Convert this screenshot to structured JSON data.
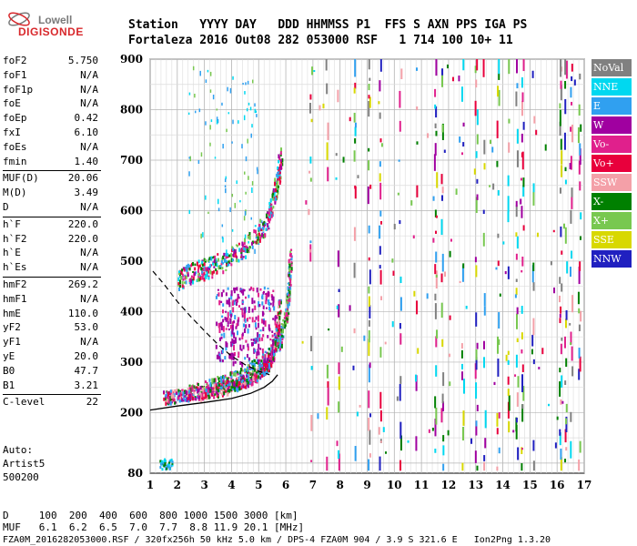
{
  "logo": {
    "line1": "Lowell",
    "line2": "DIGISONDE"
  },
  "header": {
    "row1": "Station   YYYY DAY   DDD HHMMSS P1  FFS S AXN PPS IGA PS",
    "row2": "Fortaleza 2016 Out08 282 053000 RSF   1 714 100 10+ 11"
  },
  "params": [
    {
      "name": "foF2",
      "value": "5.750"
    },
    {
      "name": "foF1",
      "value": "N/A"
    },
    {
      "name": "foF1p",
      "value": "N/A"
    },
    {
      "name": "foE",
      "value": "N/A"
    },
    {
      "name": "foEp",
      "value": "0.42"
    },
    {
      "name": "fxI",
      "value": "6.10"
    },
    {
      "name": "foEs",
      "value": "N/A"
    },
    {
      "name": "fmin",
      "value": "1.40"
    },
    {
      "name": "MUF(D)",
      "value": "20.06"
    },
    {
      "name": "M(D)",
      "value": "3.49"
    },
    {
      "name": "D",
      "value": "N/A"
    },
    {
      "name": "h`F",
      "value": "220.0"
    },
    {
      "name": "h`F2",
      "value": "220.0"
    },
    {
      "name": "h`E",
      "value": "N/A"
    },
    {
      "name": "h`Es",
      "value": "N/A"
    },
    {
      "name": "hmF2",
      "value": "269.2"
    },
    {
      "name": "hmF1",
      "value": "N/A"
    },
    {
      "name": "hmE",
      "value": "110.0"
    },
    {
      "name": "yF2",
      "value": "53.0"
    },
    {
      "name": "yF1",
      "value": "N/A"
    },
    {
      "name": "yE",
      "value": "20.0"
    },
    {
      "name": "B0",
      "value": "47.7"
    },
    {
      "name": "B1",
      "value": "3.21"
    },
    {
      "name": "C-level",
      "value": "22"
    }
  ],
  "auto": {
    "label": "Auto:",
    "artist": "Artist5",
    "code": "500200"
  },
  "footer": {
    "d_row": "D     100  200  400  600  800 1000 1500 3000 [km]",
    "muf_row": "MUF   6.1  6.2  6.5  7.0  7.7  8.8 11.9 20.1 [MHz]",
    "file_row": "FZA0M_2016282053000.RSF / 320fx256h 50 kHz 5.0 km / DPS-4 FZA0M 904 / 3.9 S 321.6 E   Ion2Png 1.3.20"
  },
  "chart_data": {
    "type": "scatter",
    "title": "",
    "xlabel": "",
    "ylabel": "",
    "xlim": [
      1,
      17
    ],
    "ylim": [
      80,
      900
    ],
    "x_ticks": [
      1,
      2,
      3,
      4,
      5,
      6,
      7,
      8,
      9,
      10,
      11,
      12,
      13,
      14,
      15,
      16,
      17
    ],
    "y_ticks": [
      80,
      200,
      300,
      400,
      500,
      600,
      700,
      800,
      900
    ],
    "grid": true,
    "legend_position": "right",
    "legend": [
      {
        "name": "NoVal",
        "color": "#808080"
      },
      {
        "name": "NNE",
        "color": "#00d8f0"
      },
      {
        "name": "E",
        "color": "#30a0f0"
      },
      {
        "name": "W",
        "color": "#a000a0"
      },
      {
        "name": "Vo-",
        "color": "#e0208c"
      },
      {
        "name": "Vo+",
        "color": "#e8003c"
      },
      {
        "name": "SSW",
        "color": "#f4a0a8"
      },
      {
        "name": "X-",
        "color": "#008000"
      },
      {
        "name": "X+",
        "color": "#78c850"
      },
      {
        "name": "SSE",
        "color": "#d8d800"
      },
      {
        "name": "NNW",
        "color": "#2020c0"
      }
    ],
    "trace_o": [
      [
        1.5,
        228
      ],
      [
        2.0,
        230
      ],
      [
        2.5,
        234
      ],
      [
        3.0,
        238
      ],
      [
        3.5,
        243
      ],
      [
        4.0,
        250
      ],
      [
        4.5,
        260
      ],
      [
        5.0,
        275
      ],
      [
        5.3,
        290
      ],
      [
        5.5,
        315
      ],
      [
        5.65,
        350
      ],
      [
        5.75,
        420
      ]
    ],
    "trace_x": [
      [
        2.3,
        235
      ],
      [
        3.0,
        245
      ],
      [
        3.5,
        252
      ],
      [
        4.0,
        262
      ],
      [
        4.5,
        275
      ],
      [
        5.0,
        292
      ],
      [
        5.5,
        318
      ],
      [
        5.8,
        345
      ],
      [
        6.0,
        390
      ],
      [
        6.1,
        440
      ],
      [
        6.15,
        520
      ]
    ],
    "trace_2hop": [
      [
        2.0,
        455
      ],
      [
        2.5,
        470
      ],
      [
        3.0,
        478
      ],
      [
        3.5,
        488
      ],
      [
        4.0,
        505
      ],
      [
        4.5,
        525
      ],
      [
        5.0,
        550
      ],
      [
        5.3,
        575
      ],
      [
        5.5,
        610
      ],
      [
        5.7,
        660
      ],
      [
        5.8,
        700
      ]
    ],
    "profile_solid": [
      [
        1.0,
        205
      ],
      [
        2.0,
        213
      ],
      [
        3.0,
        220
      ],
      [
        4.0,
        228
      ],
      [
        4.7,
        238
      ],
      [
        5.2,
        250
      ],
      [
        5.5,
        262
      ],
      [
        5.7,
        275
      ]
    ],
    "profile_dashed": [
      [
        1.1,
        480
      ],
      [
        1.5,
        455
      ],
      [
        2.0,
        420
      ],
      [
        2.5,
        390
      ],
      [
        3.0,
        362
      ],
      [
        3.5,
        335
      ],
      [
        4.0,
        312
      ],
      [
        4.5,
        295
      ],
      [
        5.0,
        282
      ],
      [
        5.4,
        275
      ]
    ]
  }
}
